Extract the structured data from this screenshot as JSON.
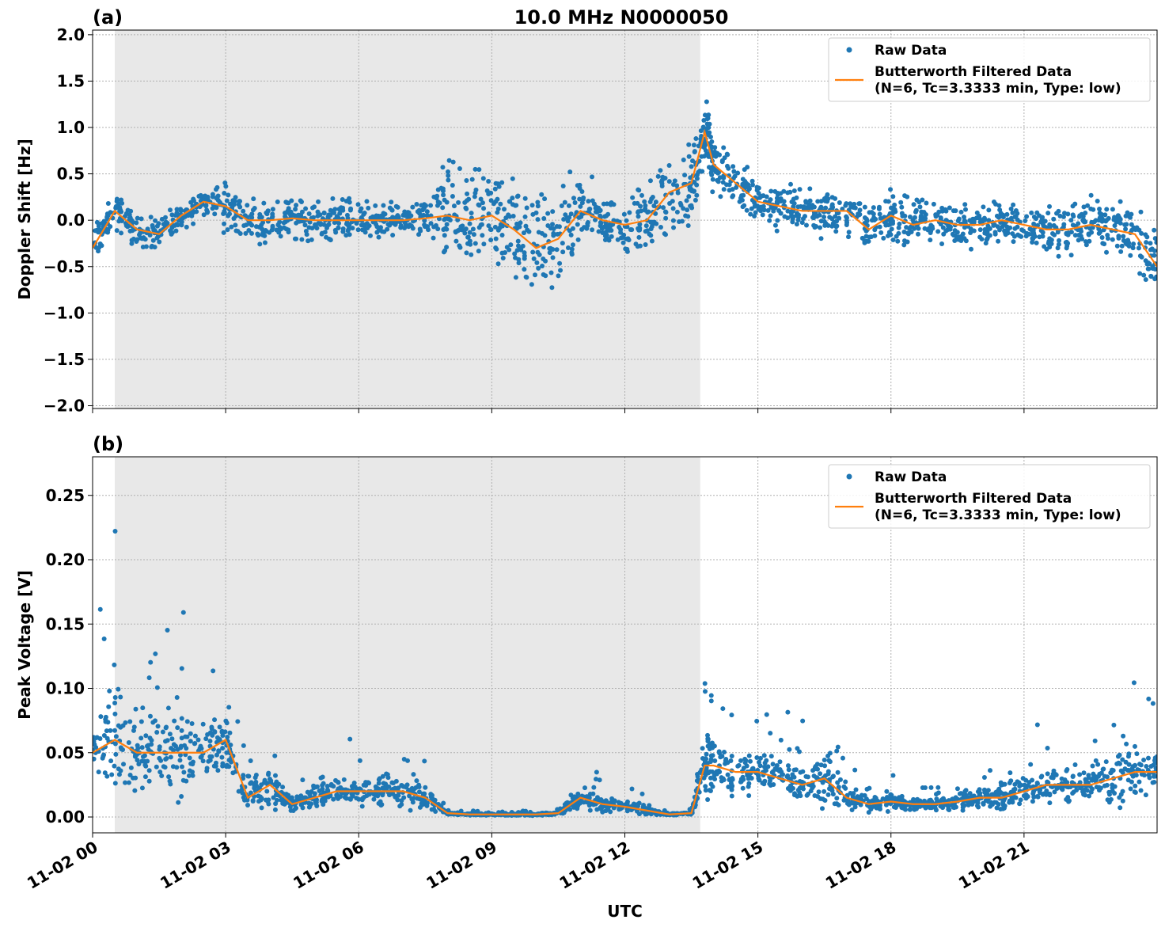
{
  "title": "10.0 MHz N0000050",
  "chart_data": [
    {
      "type": "scatter",
      "panel_label": "(a)",
      "ylabel": "Doppler Shift [Hz]",
      "xlabel": "",
      "x_unit": "hours UTC on 11-02",
      "xlim": [
        0,
        24
      ],
      "ylim": [
        -2.03,
        2.05
      ],
      "yticks": [
        -2.0,
        -1.5,
        -1.0,
        -0.5,
        0.0,
        0.5,
        1.0,
        1.5,
        2.0
      ],
      "ytick_labels": [
        "−2.0",
        "−1.5",
        "−1.0",
        "−0.5",
        "0.0",
        "0.5",
        "1.0",
        "1.5",
        "2.0"
      ],
      "shaded_region": [
        0.5,
        13.7
      ],
      "grid": true,
      "legend_placement": "upper right",
      "legend": [
        "Raw Data",
        "Butterworth Filtered Data\n(N=6, Tc=3.3333 min, Type: low)"
      ],
      "raw_color": "#1f77b4",
      "filtered_color": "#ff7f0e",
      "x": [
        0,
        0.5,
        1,
        1.5,
        2,
        2.5,
        3,
        3.5,
        4,
        4.5,
        5,
        5.5,
        6,
        6.5,
        7,
        7.5,
        8,
        8.5,
        9,
        9.5,
        10,
        10.5,
        11,
        11.5,
        12,
        12.5,
        13,
        13.5,
        13.8,
        14,
        14.5,
        15,
        15.5,
        16,
        16.5,
        17,
        17.5,
        18,
        18.5,
        19,
        19.5,
        20,
        20.5,
        21,
        21.5,
        22,
        22.5,
        23,
        23.5,
        24
      ],
      "filtered": [
        -0.3,
        0.1,
        -0.1,
        -0.15,
        0.05,
        0.2,
        0.15,
        0.0,
        0.0,
        0.02,
        0.0,
        0.0,
        0.0,
        0.0,
        0.0,
        0.02,
        0.05,
        0.0,
        0.05,
        -0.1,
        -0.3,
        -0.2,
        0.1,
        0.0,
        -0.05,
        0.0,
        0.3,
        0.4,
        0.95,
        0.6,
        0.4,
        0.2,
        0.15,
        0.1,
        0.1,
        0.1,
        -0.1,
        0.05,
        -0.05,
        0.0,
        -0.05,
        -0.05,
        0.0,
        -0.05,
        -0.1,
        -0.1,
        -0.05,
        -0.1,
        -0.15,
        -0.5
      ],
      "raw_spread": [
        0.3,
        0.25,
        0.3,
        0.2,
        0.2,
        0.2,
        0.4,
        0.3,
        0.3,
        0.3,
        0.3,
        0.3,
        0.3,
        0.25,
        0.2,
        0.3,
        0.8,
        0.8,
        0.8,
        0.8,
        0.8,
        0.7,
        0.6,
        0.4,
        0.4,
        0.5,
        0.7,
        0.7,
        0.6,
        0.45,
        0.4,
        0.35,
        0.35,
        0.3,
        0.35,
        0.35,
        0.4,
        0.35,
        0.35,
        0.35,
        0.3,
        0.3,
        0.3,
        0.3,
        0.35,
        0.4,
        0.4,
        0.35,
        0.4,
        0.6
      ]
    },
    {
      "type": "scatter",
      "panel_label": "(b)",
      "ylabel": "Peak Voltage [V]",
      "xlabel": "UTC",
      "x_unit": "hours UTC on 11-02",
      "xlim": [
        0,
        24
      ],
      "ylim": [
        -0.0123,
        0.28
      ],
      "yticks": [
        0.0,
        0.05,
        0.1,
        0.15,
        0.2,
        0.25
      ],
      "ytick_labels": [
        "0.00",
        "0.05",
        "0.10",
        "0.15",
        "0.20",
        "0.25"
      ],
      "xtick_labels": [
        "11-02 00",
        "11-02 03",
        "11-02 06",
        "11-02 09",
        "11-02 12",
        "11-02 15",
        "11-02 18",
        "11-02 21"
      ],
      "xticks": [
        0,
        3,
        6,
        9,
        12,
        15,
        18,
        21
      ],
      "shaded_region": [
        0.5,
        13.7
      ],
      "grid": true,
      "legend_placement": "upper right",
      "legend": [
        "Raw Data",
        "Butterworth Filtered Data\n(N=6, Tc=3.3333 min, Type: low)"
      ],
      "raw_color": "#1f77b4",
      "filtered_color": "#ff7f0e",
      "x": [
        0,
        0.5,
        1,
        1.5,
        2,
        2.5,
        3,
        3.5,
        4,
        4.5,
        5,
        5.5,
        6,
        6.5,
        7,
        7.5,
        8,
        8.5,
        9,
        9.5,
        10,
        10.5,
        11,
        11.5,
        12,
        12.5,
        13,
        13.5,
        13.8,
        14,
        14.5,
        15,
        15.5,
        16,
        16.5,
        17,
        17.5,
        18,
        18.5,
        19,
        19.5,
        20,
        20.5,
        21,
        21.5,
        22,
        22.5,
        23,
        23.5,
        24
      ],
      "filtered": [
        0.05,
        0.06,
        0.05,
        0.05,
        0.05,
        0.05,
        0.06,
        0.015,
        0.025,
        0.01,
        0.015,
        0.02,
        0.02,
        0.02,
        0.02,
        0.015,
        0.003,
        0.002,
        0.002,
        0.002,
        0.002,
        0.003,
        0.015,
        0.01,
        0.008,
        0.005,
        0.002,
        0.003,
        0.04,
        0.04,
        0.035,
        0.035,
        0.03,
        0.025,
        0.03,
        0.015,
        0.01,
        0.012,
        0.01,
        0.01,
        0.012,
        0.015,
        0.015,
        0.02,
        0.025,
        0.025,
        0.025,
        0.03,
        0.035,
        0.035
      ],
      "raw_spread": [
        0.05,
        0.1,
        0.06,
        0.07,
        0.08,
        0.06,
        0.05,
        0.025,
        0.04,
        0.015,
        0.02,
        0.025,
        0.025,
        0.025,
        0.025,
        0.02,
        0.002,
        0.002,
        0.002,
        0.002,
        0.002,
        0.003,
        0.025,
        0.015,
        0.01,
        0.01,
        0.002,
        0.002,
        0.06,
        0.045,
        0.04,
        0.04,
        0.035,
        0.03,
        0.05,
        0.02,
        0.015,
        0.015,
        0.012,
        0.012,
        0.015,
        0.02,
        0.025,
        0.03,
        0.03,
        0.03,
        0.03,
        0.04,
        0.05,
        0.05
      ]
    }
  ]
}
